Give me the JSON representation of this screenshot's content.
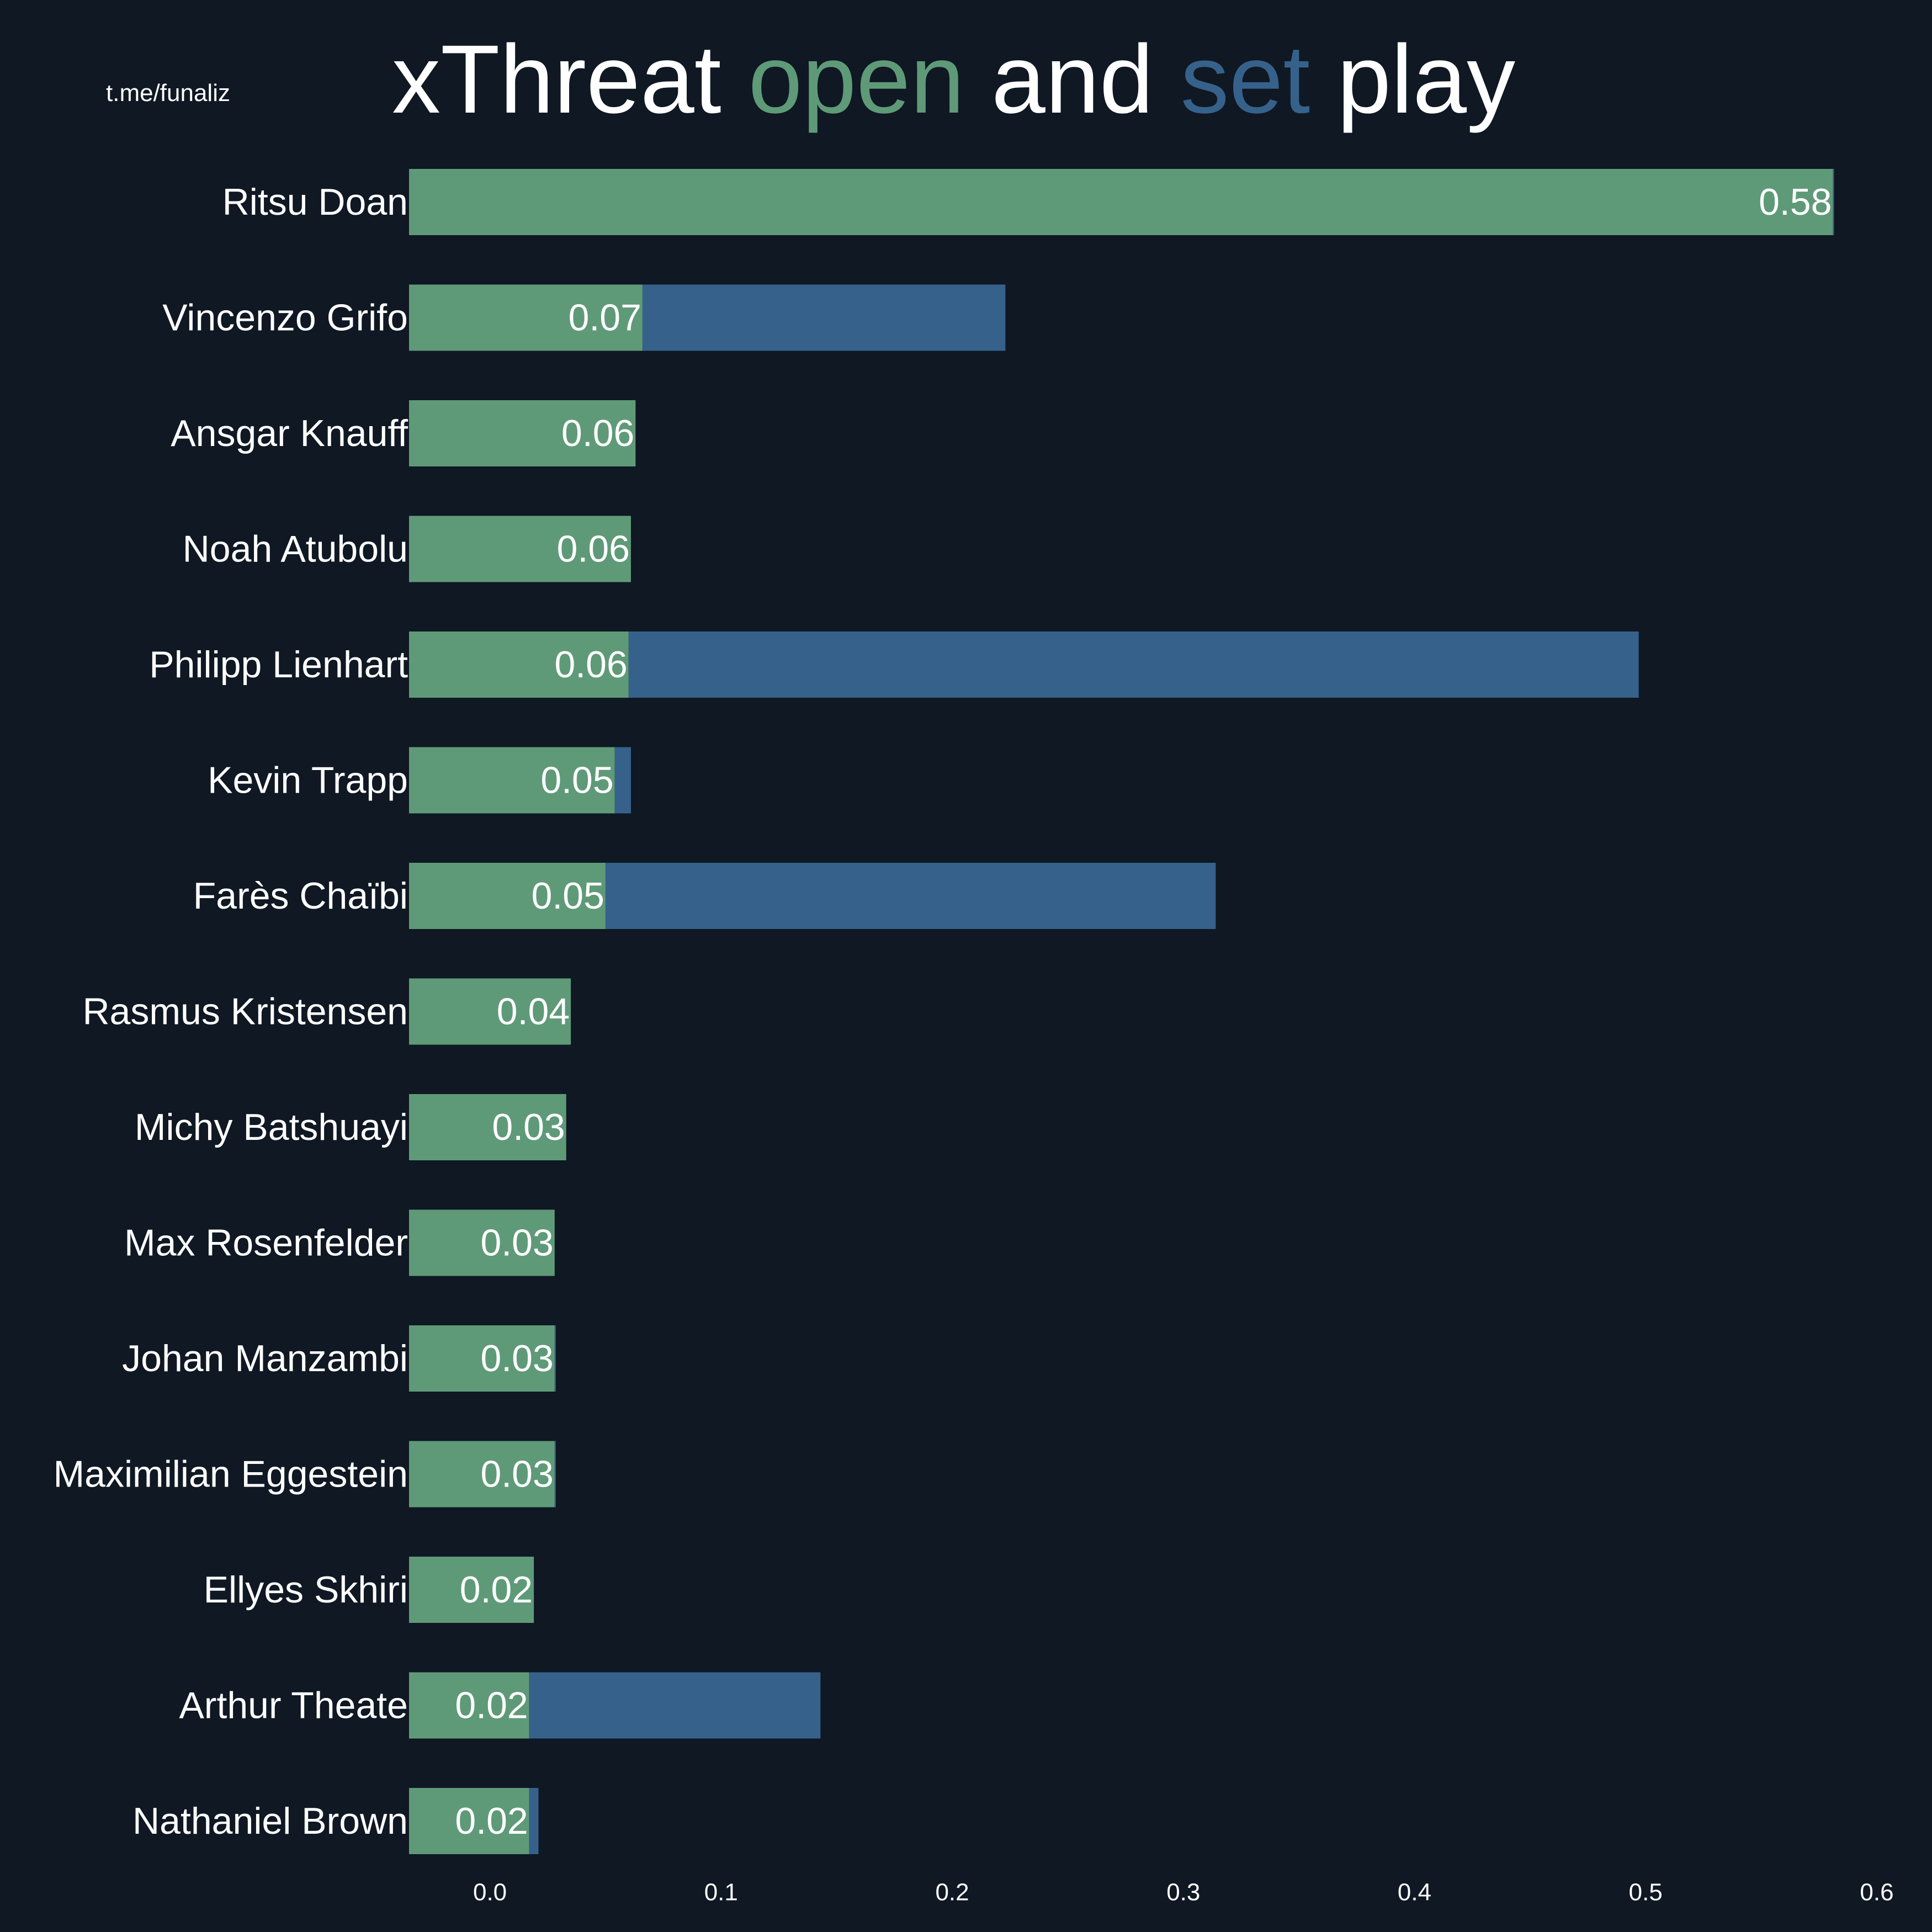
{
  "watermark": "t.me/funaliz",
  "title": {
    "part1": "xThreat ",
    "part2": "open",
    "part3": " and ",
    "part4": "set",
    "part5": " play"
  },
  "colors": {
    "background": "#0f1823",
    "open": "#5f9a78",
    "set": "#36618b",
    "text": "#ffffff"
  },
  "chart_data": {
    "type": "bar",
    "orientation": "horizontal",
    "stacked": true,
    "title": "xThreat open and set play",
    "xlim": [
      -0.035,
      0.6
    ],
    "xticks": [
      0.0,
      0.1,
      0.2,
      0.3,
      0.4,
      0.5,
      0.6
    ],
    "xtick_labels": [
      "0.0",
      "0.1",
      "0.2",
      "0.3",
      "0.4",
      "0.5",
      "0.6"
    ],
    "grid": false,
    "categories": [
      "Ritsu Doan",
      "Vincenzo Grifo",
      "Ansgar Knauff",
      "Noah Atubolu",
      "Philipp Lienhart",
      "Kevin Trapp",
      "Farès Chaïbi",
      "Rasmus Kristensen",
      "Michy Batshuayi",
      "Max Rosenfelder",
      "Johan Manzambi",
      "Maximilian Eggestein",
      "Ellyes Skhiri",
      "Arthur Theate",
      "Nathaniel Brown"
    ],
    "series": [
      {
        "key": "open",
        "values": [
          0.581,
          0.066,
          0.063,
          0.061,
          0.06,
          0.054,
          0.05,
          0.035,
          0.033,
          0.028,
          0.028,
          0.028,
          0.019,
          0.017,
          0.017
        ]
      },
      {
        "key": "set",
        "values": [
          0.0005,
          0.157,
          0.0,
          0.0,
          0.437,
          0.007,
          0.264,
          0.0,
          0.0,
          0.0,
          0.0005,
          0.0005,
          0.0,
          0.126,
          0.004
        ]
      }
    ],
    "value_labels": [
      "0.58",
      "0.07",
      "0.06",
      "0.06",
      "0.06",
      "0.05",
      "0.05",
      "0.04",
      "0.03",
      "0.03",
      "0.03",
      "0.03",
      "0.02",
      "0.02",
      "0.02"
    ]
  }
}
